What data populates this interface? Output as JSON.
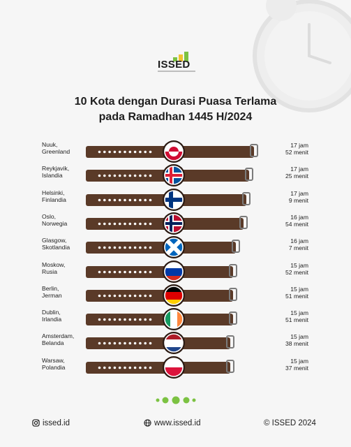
{
  "brand": {
    "logo_text": "ISSED",
    "colors": {
      "green": "#7cc242",
      "yellow": "#f2c230",
      "strap": "#5a3a28",
      "buckle": "#7b7b7b"
    }
  },
  "title_line1": "10 Kota dengan Durasi Puasa Terlama",
  "title_line2": "pada Ramadhan 1445 H/2024",
  "chart_data": {
    "type": "bar",
    "orientation": "horizontal",
    "categories": [
      "Nuuk, Greenland",
      "Reykjavik, Islandia",
      "Helsinki, Finlandia",
      "Oslo, Norwegia",
      "Glasgow, Skotlandia",
      "Moskow, Rusia",
      "Berlin, Jerman",
      "Dublin, Irlandia",
      "Amsterdam, Belanda",
      "Warsaw, Polandia"
    ],
    "series": [
      {
        "values_hours": [
          17.867,
          17.417,
          17.15,
          16.9,
          16.117,
          15.867,
          15.85,
          15.85,
          15.633,
          15.617
        ]
      }
    ],
    "rows": [
      {
        "city": "Nuuk,",
        "country": "Greenland",
        "hours": "17 jam",
        "minutes": "52 menit",
        "flag": "greenland"
      },
      {
        "city": "Reykjavik,",
        "country": "Islandia",
        "hours": "17 jam",
        "minutes": "25 menit",
        "flag": "iceland"
      },
      {
        "city": "Helsinki,",
        "country": "Finlandia",
        "hours": "17 jam",
        "minutes": "9 menit",
        "flag": "finland"
      },
      {
        "city": "Oslo,",
        "country": "Norwegia",
        "hours": "16 jam",
        "minutes": "54 menit",
        "flag": "norway"
      },
      {
        "city": "Glasgow,",
        "country": "Skotlandia",
        "hours": "16 jam",
        "minutes": "7 menit",
        "flag": "scotland"
      },
      {
        "city": "Moskow,",
        "country": "Rusia",
        "hours": "15 jam",
        "minutes": "52 menit",
        "flag": "russia"
      },
      {
        "city": "Berlin,",
        "country": "Jerman",
        "hours": "15 jam",
        "minutes": "51 menit",
        "flag": "germany"
      },
      {
        "city": "Dublin,",
        "country": "Irlandia",
        "hours": "15 jam",
        "minutes": "51 menit",
        "flag": "ireland"
      },
      {
        "city": "Amsterdam,",
        "country": "Belanda",
        "hours": "15 jam",
        "minutes": "38 menit",
        "flag": "netherlands"
      },
      {
        "city": "Warsaw,",
        "country": "Polandia",
        "hours": "15 jam",
        "minutes": "37 menit",
        "flag": "poland"
      }
    ]
  },
  "footer": {
    "instagram": "issed.id",
    "website": "www.issed.id",
    "copyright": "© ISSED 2024"
  }
}
